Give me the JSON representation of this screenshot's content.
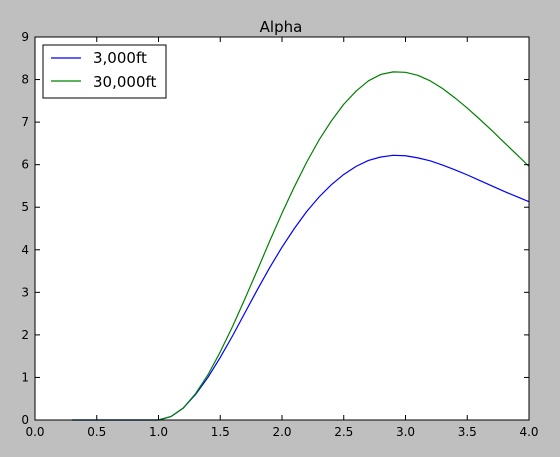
{
  "chart_data": {
    "type": "line",
    "title": "Alpha",
    "xlabel": "",
    "ylabel": "",
    "xlim": [
      0.0,
      4.0
    ],
    "ylim": [
      0,
      9
    ],
    "x_ticks": [
      "0.0",
      "0.5",
      "1.0",
      "1.5",
      "2.0",
      "2.5",
      "3.0",
      "3.5",
      "4.0"
    ],
    "y_ticks": [
      "0",
      "1",
      "2",
      "3",
      "4",
      "5",
      "6",
      "7",
      "8",
      "9"
    ],
    "grid": false,
    "legend_position": "top-left",
    "series": [
      {
        "name": "3,000ft",
        "color": "#0000ff",
        "x": [
          0.3,
          0.4,
          0.5,
          0.6,
          0.7,
          0.8,
          0.9,
          1.0,
          1.1,
          1.2,
          1.3,
          1.4,
          1.5,
          1.6,
          1.7,
          1.8,
          1.9,
          2.0,
          2.1,
          2.2,
          2.3,
          2.4,
          2.5,
          2.6,
          2.7,
          2.8,
          2.9,
          3.0,
          3.1,
          3.2,
          3.3,
          3.4,
          3.5,
          3.6,
          3.7,
          3.8,
          3.9,
          4.0
        ],
        "y": [
          0,
          0,
          0,
          0,
          0,
          0,
          0,
          0,
          0.08,
          0.28,
          0.6,
          1.0,
          1.47,
          1.98,
          2.52,
          3.06,
          3.58,
          4.06,
          4.5,
          4.9,
          5.24,
          5.53,
          5.77,
          5.96,
          6.1,
          6.18,
          6.22,
          6.21,
          6.16,
          6.09,
          5.99,
          5.88,
          5.76,
          5.63,
          5.5,
          5.37,
          5.25,
          5.13
        ]
      },
      {
        "name": "30,000ft",
        "color": "#008000",
        "x": [
          0.3,
          0.4,
          0.5,
          0.6,
          0.7,
          0.8,
          0.9,
          1.0,
          1.1,
          1.2,
          1.3,
          1.4,
          1.5,
          1.6,
          1.7,
          1.8,
          1.9,
          2.0,
          2.1,
          2.2,
          2.3,
          2.4,
          2.5,
          2.6,
          2.7,
          2.8,
          2.9,
          3.0,
          3.1,
          3.2,
          3.3,
          3.4,
          3.5,
          3.6,
          3.7,
          3.8,
          3.9,
          4.0
        ],
        "y": [
          0,
          0,
          0,
          0,
          0,
          0,
          0,
          0,
          0.08,
          0.28,
          0.62,
          1.06,
          1.6,
          2.2,
          2.85,
          3.52,
          4.2,
          4.86,
          5.48,
          6.06,
          6.58,
          7.03,
          7.42,
          7.73,
          7.97,
          8.12,
          8.18,
          8.17,
          8.1,
          7.97,
          7.79,
          7.57,
          7.33,
          7.07,
          6.8,
          6.52,
          6.24,
          5.96
        ]
      }
    ]
  }
}
